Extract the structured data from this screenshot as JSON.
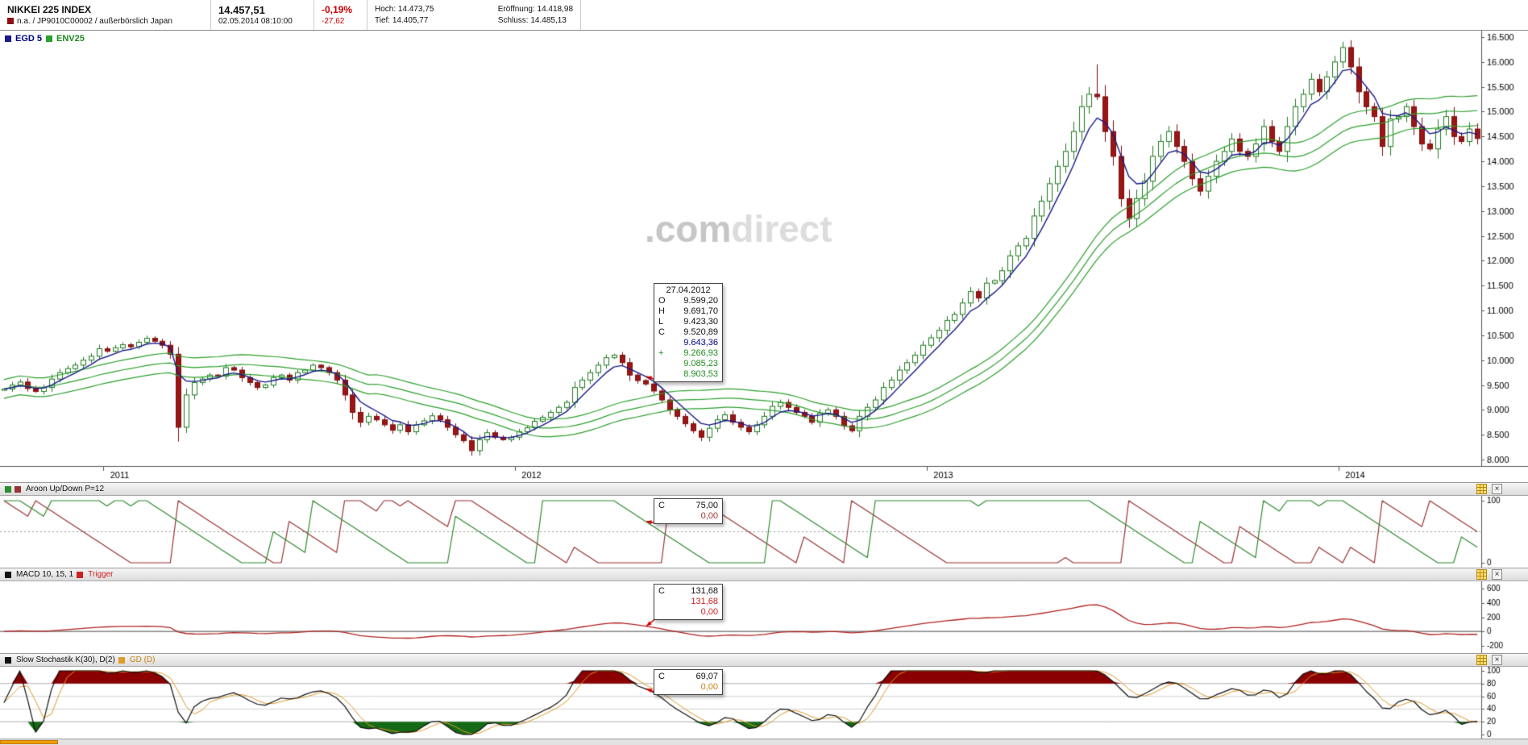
{
  "header": {
    "title": "NIKKEI 225 INDEX",
    "subtitle": "n.a. / JP9010C00002 / außerbörslich Japan",
    "last_price": "14.457,51",
    "timestamp": "02.05.2014 08:10:00",
    "change_pct": "-0,19%",
    "change_abs": "-27,62",
    "stats": {
      "hoch_label": "Hoch:",
      "hoch": "14.473,75",
      "eroeffnung_label": "Eröffnung:",
      "eroeffnung": "14.418,98",
      "tief_label": "Tief:",
      "tief": "14.405,77",
      "schluss_label": "Schluss:",
      "schluss": "14.485,13"
    }
  },
  "main_chart": {
    "legend": [
      {
        "label": "EGD 5"
      },
      {
        "label": "ENV25"
      }
    ],
    "watermark_1": ".com",
    "watermark_2": "direct",
    "tooltip": {
      "date": "27.04.2012",
      "rows": [
        [
          "O",
          "9.599,20"
        ],
        [
          "H",
          "9.691,70"
        ],
        [
          "L",
          "9.423,30"
        ],
        [
          "C",
          "9.520,89"
        ],
        [
          "",
          "9.643,36"
        ],
        [
          "+",
          "9.266,93"
        ],
        [
          "",
          "9.085,23"
        ],
        [
          "",
          "8.903,53"
        ]
      ]
    }
  },
  "panels": {
    "aroon": {
      "legend": "Aroon Up/Down P=12",
      "tooltip_rows": [
        [
          "C",
          "75,00"
        ],
        [
          "",
          "0,00"
        ]
      ]
    },
    "macd": {
      "legend": "MACD 10, 15, 1",
      "legend2": "Trigger",
      "tooltip_rows": [
        [
          "C",
          "131,68"
        ],
        [
          "",
          "131,68"
        ],
        [
          "",
          "0,00"
        ]
      ]
    },
    "stoch": {
      "legend": "Slow Stochastik K(30), D(2)",
      "legend2": "GD (D)",
      "tooltip_rows": [
        [
          "C",
          "69,07"
        ],
        [
          "",
          "0,00"
        ]
      ]
    }
  },
  "colors": {
    "negative": "#cc0000",
    "candle_up_fill": "#ffffff",
    "candle_up_border": "#1f7a1f",
    "candle_down_fill": "#9c1515",
    "candle_down_border": "#7d0f0f",
    "egd": "#1a1a8c",
    "env": "#2ca02c",
    "aroon_up": "#2e8b2e",
    "aroon_down": "#993333",
    "macd": "#b22222",
    "stoch": "#111111",
    "gd": "#e09a28",
    "stoch_fill_high": "#8b0000",
    "stoch_fill_low": "#156b15"
  },
  "chart_data": {
    "type": "candlestick",
    "symbol": "NIKKEI 225 INDEX",
    "interval": "weekly",
    "first_open": 9400,
    "closes": [
      9420,
      9500,
      9560,
      9430,
      9370,
      9450,
      9620,
      9750,
      9830,
      9900,
      10000,
      10080,
      10230,
      10180,
      10250,
      10310,
      10270,
      10360,
      10440,
      10380,
      10300,
      10120,
      8650,
      9300,
      9550,
      9620,
      9700,
      9680,
      9850,
      9800,
      9650,
      9550,
      9450,
      9500,
      9650,
      9700,
      9600,
      9750,
      9800,
      9900,
      9850,
      9750,
      9600,
      9300,
      8950,
      8750,
      8870,
      8800,
      8700,
      8590,
      8700,
      8560,
      8700,
      8780,
      8880,
      8800,
      8650,
      8500,
      8380,
      8180,
      8400,
      8540,
      8450,
      8400,
      8450,
      8560,
      8640,
      8770,
      8850,
      8950,
      9050,
      9150,
      9450,
      9600,
      9750,
      9900,
      10050,
      10100,
      9950,
      9700,
      9590,
      9521,
      9380,
      9200,
      9000,
      8870,
      8720,
      8580,
      8450,
      8630,
      8800,
      8900,
      8750,
      8650,
      8560,
      8700,
      8870,
      9070,
      9150,
      9050,
      8950,
      8870,
      8750,
      8930,
      9000,
      8870,
      8680,
      8580,
      8870,
      9050,
      9200,
      9450,
      9600,
      9800,
      9950,
      10100,
      10300,
      10450,
      10600,
      10800,
      10920,
      11150,
      11380,
      11250,
      11550,
      11600,
      11800,
      12100,
      12300,
      12450,
      12900,
      13200,
      13550,
      13900,
      14200,
      14600,
      15100,
      15350,
      15300,
      14600,
      14100,
      13250,
      12850,
      13250,
      13600,
      14100,
      14400,
      14600,
      14300,
      14000,
      13650,
      13400,
      13700,
      14000,
      14200,
      14450,
      14200,
      14100,
      14350,
      14700,
      14400,
      14200,
      14700,
      15100,
      15350,
      15650,
      15400,
      15700,
      16000,
      16290,
      15900,
      15400,
      15100,
      14900,
      14300,
      14850,
      14900,
      15100,
      14700,
      14350,
      14250,
      14650,
      14900,
      14500,
      14400,
      14650,
      14460
    ],
    "high_overrides": {
      "138": 15950
    },
    "low_overrides": {
      "22": 8360
    },
    "y_axis": {
      "min": 8000,
      "max": 16500,
      "step": 500
    },
    "year_ticks": [
      {
        "label": "2011",
        "index": 13
      },
      {
        "label": "2012",
        "index": 65
      },
      {
        "label": "2013",
        "index": 117
      },
      {
        "label": "2014",
        "index": 169
      }
    ],
    "tooltip_index": 81,
    "overlays": [
      {
        "name": "EGD 5",
        "type": "ema",
        "period": 5,
        "color": "#1a1a8c"
      },
      {
        "name": "ENV25",
        "type": "envelope",
        "period": 25,
        "pct": 2.0,
        "color": "#2ca02c"
      }
    ],
    "panels": [
      {
        "name": "Aroon Up/Down",
        "period": 12,
        "axis": [
          100,
          0
        ]
      },
      {
        "name": "MACD",
        "fast": 10,
        "slow": 15,
        "trigger": 1,
        "axis": [
          600,
          400,
          200,
          0,
          -200
        ],
        "display_scale": 0.62
      },
      {
        "name": "Slow Stochastik",
        "k": 30,
        "d": 2,
        "axis": [
          100,
          80,
          60,
          40,
          20,
          0
        ],
        "grid": [
          80,
          60,
          40,
          20
        ]
      }
    ]
  }
}
